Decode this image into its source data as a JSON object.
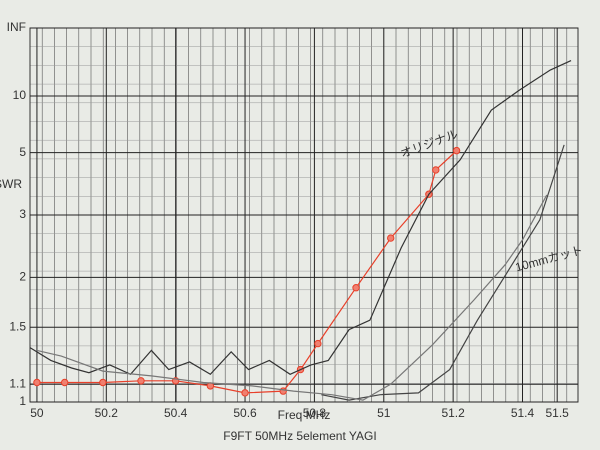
{
  "chart_data": {
    "type": "line",
    "title": "F9FT 50MHz 5element YAGI",
    "x_label": "Freq MHz",
    "y_label": "SWR",
    "y_scale": "reflection",
    "grid": true,
    "xlim": [
      49.98,
      51.56
    ],
    "xticks": [
      50,
      50.2,
      50.4,
      50.6,
      50.8,
      51,
      51.2,
      51.4,
      51.5
    ],
    "ylim": [
      1,
      null
    ],
    "yticks": [
      1,
      1.1,
      1.5,
      2,
      3,
      5,
      10,
      {
        "value": null,
        "label": "INF"
      }
    ],
    "annotations": [
      "オリジナル",
      "10mmカット"
    ],
    "series": [
      {
        "color": "#e8402a",
        "markers": true,
        "x": [
          50.0,
          50.08,
          50.19,
          50.3,
          50.4,
          50.5,
          50.6,
          50.71,
          50.76,
          50.81,
          50.92,
          51.02,
          51.13,
          51.15,
          51.21
        ],
        "values": [
          1.11,
          1.11,
          1.11,
          1.12,
          1.12,
          1.09,
          1.05,
          1.06,
          1.19,
          1.37,
          1.88,
          2.56,
          3.5,
          4.27,
          5.1
        ]
      },
      {
        "color": "#333333",
        "markers": false,
        "x": [
          49.98,
          50.04,
          50.1,
          50.15,
          50.21,
          50.27,
          50.33,
          50.38,
          50.44,
          50.5,
          50.56,
          50.61,
          50.67,
          50.73,
          50.79,
          50.84,
          50.9,
          50.96,
          51.05,
          51.13,
          51.22,
          51.31,
          51.39,
          51.48,
          51.54
        ],
        "values": [
          1.34,
          1.25,
          1.2,
          1.17,
          1.22,
          1.16,
          1.32,
          1.19,
          1.24,
          1.16,
          1.31,
          1.19,
          1.25,
          1.16,
          1.22,
          1.25,
          1.48,
          1.56,
          2.4,
          3.5,
          4.67,
          8.1,
          11,
          16.8,
          22
        ]
      },
      {
        "color": "#444444",
        "markers": false,
        "x": [
          50.82,
          50.9,
          50.99,
          51.1,
          51.19,
          51.27,
          51.36,
          51.45,
          51.52
        ],
        "values": [
          1.04,
          1.01,
          1.04,
          1.05,
          1.19,
          1.56,
          2.09,
          2.9,
          5.4
        ]
      },
      {
        "color": "#777777",
        "markers": false,
        "x": [
          50.0,
          50.07,
          50.19,
          50.33,
          50.48,
          50.62,
          50.74,
          50.85,
          50.94,
          51.02,
          51.14,
          51.26,
          51.35,
          51.4,
          51.47
        ],
        "values": [
          1.32,
          1.28,
          1.18,
          1.15,
          1.11,
          1.09,
          1.06,
          1.04,
          1.01,
          1.1,
          1.36,
          1.75,
          2.16,
          2.53,
          3.48
        ]
      }
    ]
  }
}
